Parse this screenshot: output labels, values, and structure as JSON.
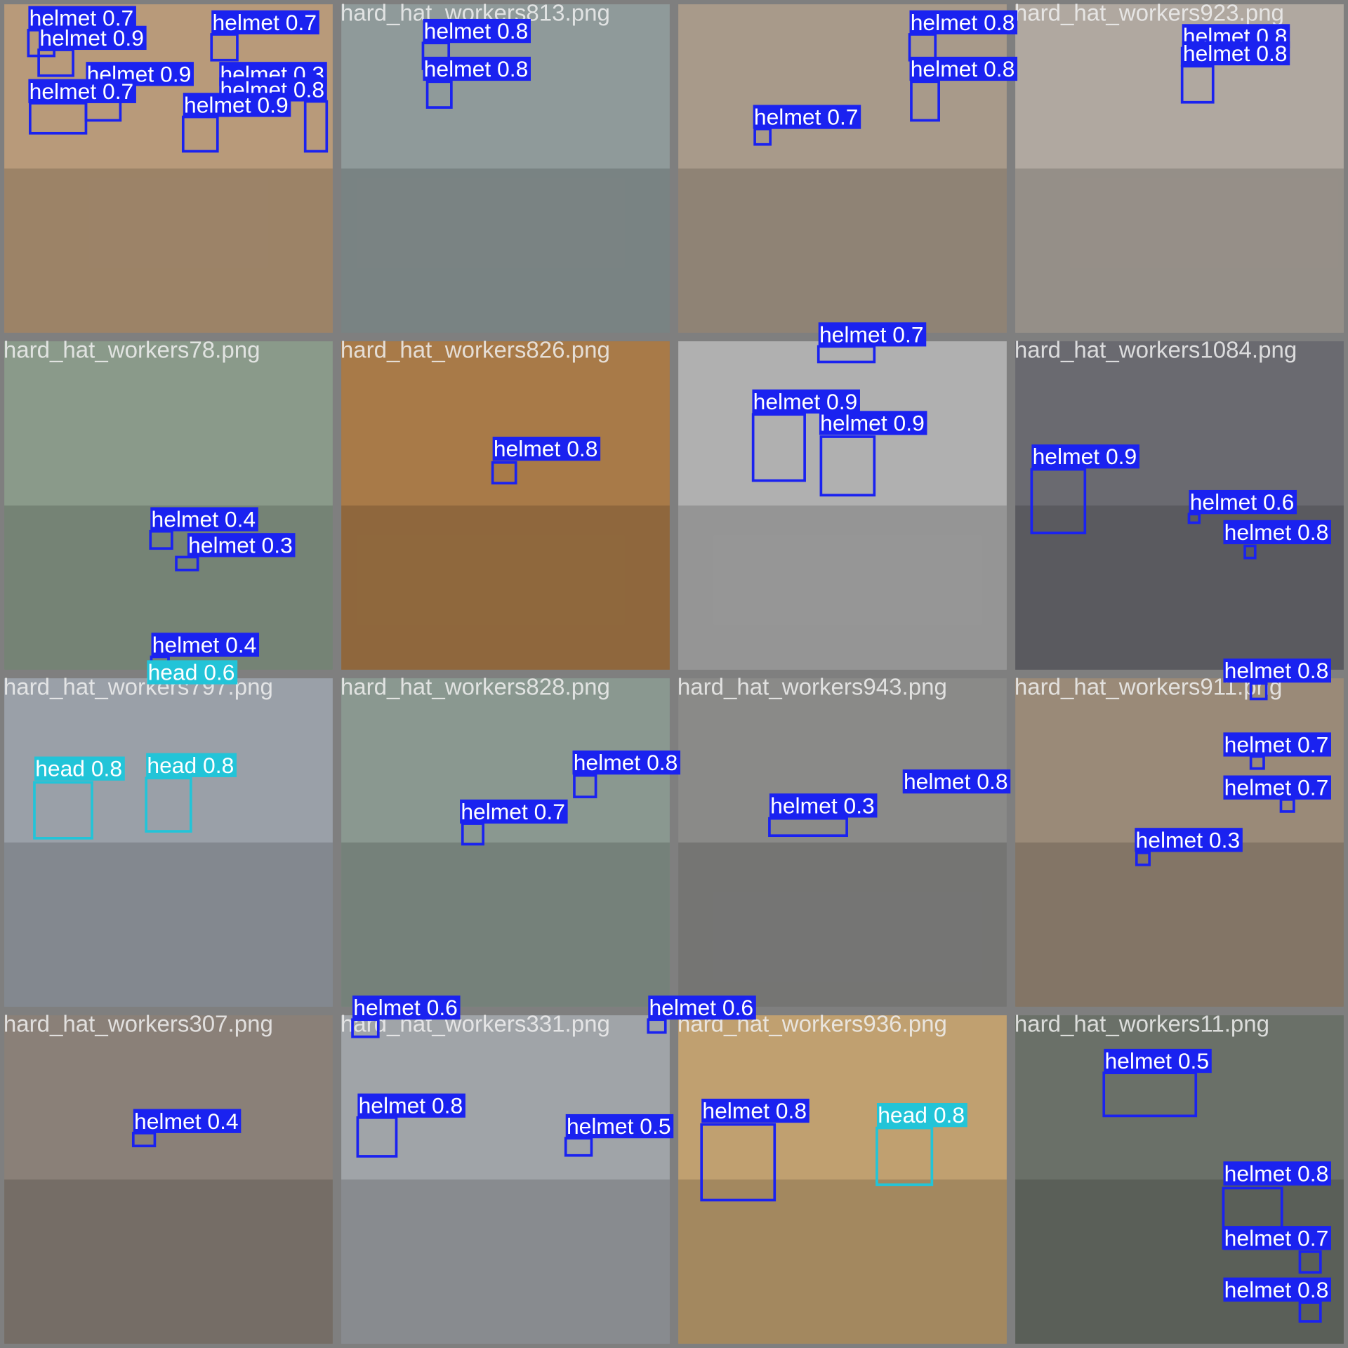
{
  "tiles": [
    {
      "tone": "#b89a7a"
    },
    {
      "title": "hard_hat_workers813.png",
      "tone": "#8f9a9a"
    },
    {
      "tone": "#a89a8a"
    },
    {
      "title": "hard_hat_workers923.png",
      "tone": "#b0a8a0"
    },
    {
      "title": "hard_hat_workers78.png",
      "tone": "#8a9a8a"
    },
    {
      "title": "hard_hat_workers826.png",
      "tone": "#a87a48"
    },
    {
      "tone": "#b0b0b0"
    },
    {
      "title": "hard_hat_workers1084.png",
      "tone": "#6a6a70"
    },
    {
      "title": "hard_hat_workers797.png",
      "tone": "#9aa0a8"
    },
    {
      "title": "hard_hat_workers828.png",
      "tone": "#8a9890"
    },
    {
      "title": "hard_hat_workers943.png",
      "tone": "#8a8a88"
    },
    {
      "title": "hard_hat_workers911.png",
      "tone": "#9a8a78"
    },
    {
      "title": "hard_hat_workers307.png",
      "tone": "#8a8078"
    },
    {
      "title": "hard_hat_workers331.png",
      "tone": "#a0a4a8"
    },
    {
      "title": "hard_hat_workers936.png",
      "tone": "#c0a070"
    },
    {
      "title": "hard_hat_workers11.png",
      "tone": "#6a7068"
    }
  ],
  "detections": [
    {
      "label": "helmet 0.7",
      "color": "#1a22f0"
    },
    {
      "label": "helmet 0.9",
      "color": "#1a22f0"
    },
    {
      "label": "helmet 0.7",
      "color": "#1a22f0"
    },
    {
      "label": "helmet 0.9",
      "color": "#1a22f0"
    },
    {
      "label": "helmet 0.3",
      "color": "#1a22f0"
    },
    {
      "label": "helmet 0.7",
      "color": "#1a22f0"
    },
    {
      "label": "helmet 0.8",
      "color": "#1a22f0"
    },
    {
      "label": "helmet 0.9",
      "color": "#1a22f0"
    },
    {
      "label": "helmet 0.8",
      "color": "#1a22f0"
    },
    {
      "label": "helmet 0.8",
      "color": "#1a22f0"
    },
    {
      "label": "helmet 0.8",
      "color": "#1a22f0"
    },
    {
      "label": "helmet 0.8",
      "color": "#1a22f0"
    },
    {
      "label": "helmet 0.7",
      "color": "#1a22f0"
    },
    {
      "label": "helmet 0.8",
      "color": "#1a22f0"
    },
    {
      "label": "helmet 0.8",
      "color": "#1a22f0"
    },
    {
      "label": "helmet 0.4",
      "color": "#1a22f0"
    },
    {
      "label": "helmet 0.3",
      "color": "#1a22f0"
    },
    {
      "label": "helmet 0.4",
      "color": "#1a22f0"
    },
    {
      "label": "head 0.6",
      "color": "#22c4d8"
    },
    {
      "label": "helmet 0.8",
      "color": "#1a22f0"
    },
    {
      "label": "helmet 0.7",
      "color": "#1a22f0"
    },
    {
      "label": "helmet 0.9",
      "color": "#1a22f0"
    },
    {
      "label": "helmet 0.9",
      "color": "#1a22f0"
    },
    {
      "label": "helmet 0.9",
      "color": "#1a22f0"
    },
    {
      "label": "helmet 0.6",
      "color": "#1a22f0"
    },
    {
      "label": "helmet 0.8",
      "color": "#1a22f0"
    },
    {
      "label": "helmet 0.8",
      "color": "#1a22f0"
    },
    {
      "label": "head 0.8",
      "color": "#22c4d8"
    },
    {
      "label": "head 0.8",
      "color": "#22c4d8"
    },
    {
      "label": "helmet 0.8",
      "color": "#1a22f0"
    },
    {
      "label": "helmet 0.7",
      "color": "#1a22f0"
    },
    {
      "label": "helmet 0.8",
      "color": "#1a22f0"
    },
    {
      "label": "helmet 0.3",
      "color": "#1a22f0"
    },
    {
      "label": "helmet 0.7",
      "color": "#1a22f0"
    },
    {
      "label": "helmet 0.7",
      "color": "#1a22f0"
    },
    {
      "label": "helmet 0.3",
      "color": "#1a22f0"
    },
    {
      "label": "helmet 0.4",
      "color": "#1a22f0"
    },
    {
      "label": "helmet 0.6",
      "color": "#1a22f0"
    },
    {
      "label": "helmet 0.8",
      "color": "#1a22f0"
    },
    {
      "label": "helmet 0.5",
      "color": "#1a22f0"
    },
    {
      "label": "helmet 0.6",
      "color": "#1a22f0"
    },
    {
      "label": "helmet 0.8",
      "color": "#1a22f0"
    },
    {
      "label": "head 0.8",
      "color": "#22c4d8"
    },
    {
      "label": "helmet 0.5",
      "color": "#1a22f0"
    },
    {
      "label": "helmet 0.8",
      "color": "#1a22f0"
    },
    {
      "label": "helmet 0.7",
      "color": "#1a22f0"
    },
    {
      "label": "helmet 0.8",
      "color": "#1a22f0"
    }
  ]
}
